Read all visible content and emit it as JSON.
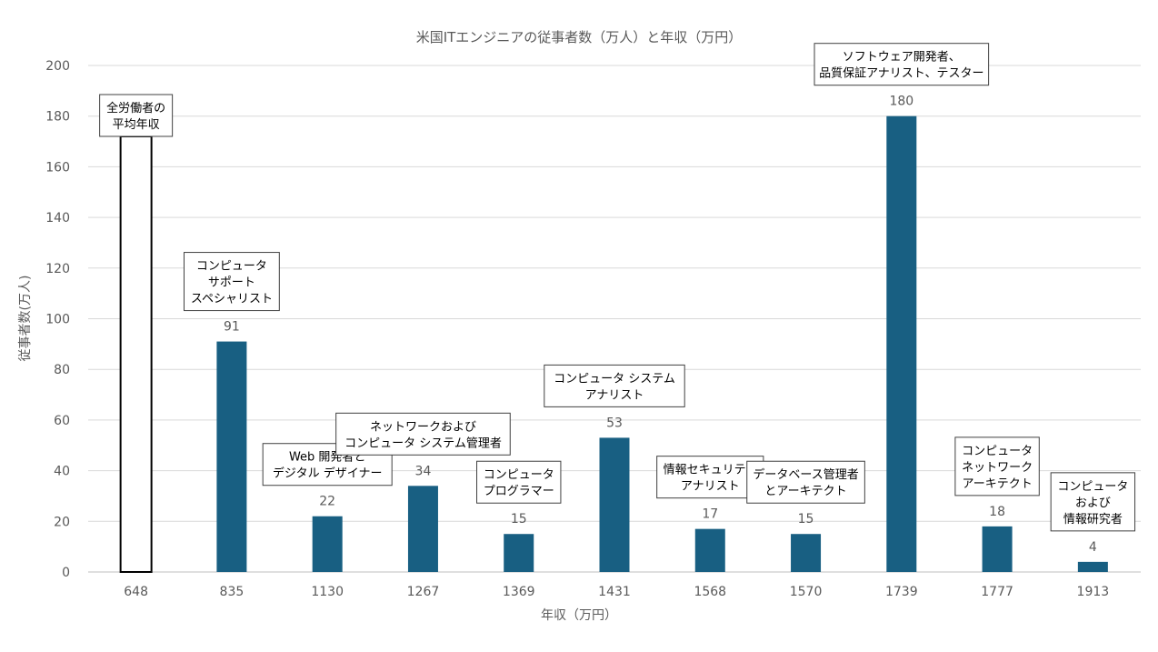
{
  "chart_data": {
    "type": "bar",
    "title": "米国ITエンジニアの従事者数（万人）と年収（万円）",
    "xlabel": "年収（万円）",
    "ylabel": "従事者数(万人)",
    "ylim": [
      0,
      200
    ],
    "yticks": [
      0,
      20,
      40,
      60,
      80,
      100,
      120,
      140,
      160,
      180,
      200
    ],
    "grid": true,
    "categories": [
      "648",
      "835",
      "1130",
      "1267",
      "1369",
      "1431",
      "1568",
      "1570",
      "1739",
      "1777",
      "1913"
    ],
    "values": [
      null,
      91,
      22,
      34,
      15,
      53,
      17,
      15,
      180,
      18,
      4
    ],
    "annotations": [
      {
        "category": "648",
        "lines": [
          "全労働者の",
          "平均年収"
        ],
        "style": "reference-outline"
      },
      {
        "category": "835",
        "lines": [
          "コンピュータ",
          "サポート",
          "スペシャリスト"
        ]
      },
      {
        "category": "1130",
        "lines": [
          "Web 開発者と",
          "デジタル デザイナー"
        ]
      },
      {
        "category": "1267",
        "lines": [
          "ネットワークおよび",
          "コンピュータ システム管理者"
        ]
      },
      {
        "category": "1369",
        "lines": [
          "コンピュータ",
          "プログラマー"
        ]
      },
      {
        "category": "1431",
        "lines": [
          "コンピュータ システム",
          "アナリスト"
        ]
      },
      {
        "category": "1568",
        "lines": [
          "情報セキュリティ",
          "アナリスト"
        ]
      },
      {
        "category": "1570",
        "lines": [
          "データベース管理者",
          "とアーキテクト"
        ]
      },
      {
        "category": "1739",
        "lines": [
          "ソフトウェア開発者、",
          "品質保証アナリスト、テスター"
        ]
      },
      {
        "category": "1777",
        "lines": [
          "コンピュータ",
          "ネットワーク",
          "アーキテクト"
        ]
      },
      {
        "category": "1913",
        "lines": [
          "コンピュータ",
          "および",
          "情報研究者"
        ]
      }
    ],
    "colors": {
      "bar": "#185f82",
      "grid": "#d9d9d9",
      "text": "#595959",
      "outline": "#000000"
    }
  }
}
